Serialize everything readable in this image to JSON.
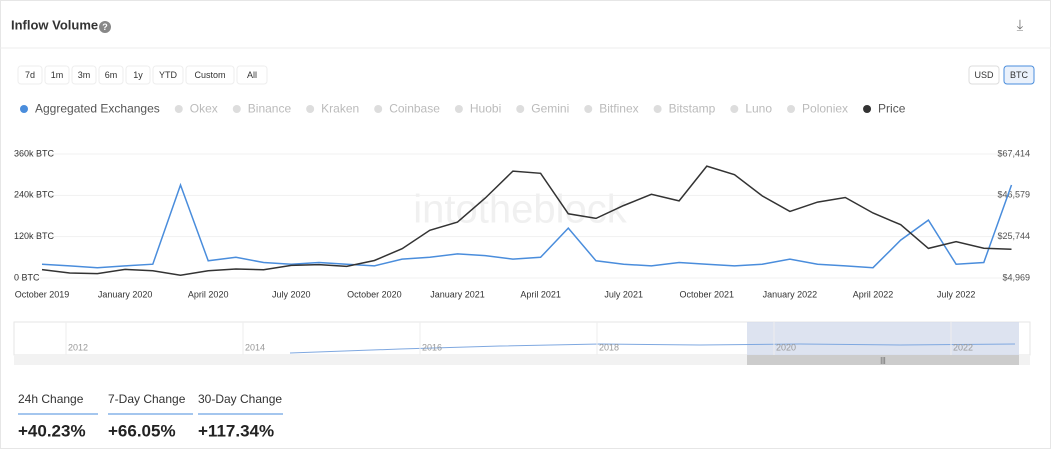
{
  "header": {
    "title": "Inflow Volume",
    "help": "?",
    "download": "⤓"
  },
  "range_buttons": [
    "7d",
    "1m",
    "3m",
    "6m",
    "1y",
    "YTD",
    "Custom",
    "All"
  ],
  "currency_buttons": [
    "USD",
    "BTC"
  ],
  "hidden_series": [
    "Okex",
    "Binance",
    "Kraken",
    "Coinbase",
    "Huobi",
    "Gemini",
    "Bitfinex",
    "Bitstamp",
    "Luno",
    "Poloniex"
  ],
  "watermark": "intotheblock",
  "navigator": {
    "labels": [
      "2012",
      "2014",
      "2016",
      "2018",
      "2020",
      "2022"
    ],
    "scroll": "|||"
  },
  "stats": [
    {
      "label": "24h Change",
      "value": "+40.23%"
    },
    {
      "label": "7-Day Change",
      "value": "+66.05%"
    },
    {
      "label": "30-Day Change",
      "value": "+117.34%"
    }
  ],
  "chart_data": {
    "type": "line",
    "categories": [
      "October 2019",
      null,
      null,
      "January 2020",
      null,
      null,
      "April 2020",
      null,
      null,
      "July 2020",
      null,
      null,
      "October 2020",
      null,
      null,
      "January 2021",
      null,
      null,
      "April 2021",
      null,
      null,
      "July 2021",
      null,
      null,
      "October 2021",
      null,
      null,
      "January 2022",
      null,
      null,
      "April 2022",
      null,
      null,
      "July 2022",
      null,
      null
    ],
    "series": [
      {
        "name": "Aggregated Exchanges",
        "color": "#4a8ddc",
        "values": [
          40000,
          35000,
          30000,
          35000,
          40000,
          270000,
          50000,
          60000,
          45000,
          40000,
          45000,
          40000,
          35000,
          55000,
          60000,
          70000,
          65000,
          55000,
          60000,
          145000,
          50000,
          40000,
          35000,
          45000,
          40000,
          35000,
          40000,
          55000,
          40000,
          35000,
          30000,
          110000,
          168000,
          40000,
          45000,
          270000
        ]
      },
      {
        "name": "Price",
        "color": "#333333",
        "axis": "y2",
        "values": [
          9200,
          7500,
          7200,
          9300,
          8600,
          6400,
          8600,
          9500,
          9100,
          11300,
          11700,
          10800,
          13800,
          19700,
          29000,
          33100,
          45200,
          58800,
          57700,
          37300,
          35000,
          41500,
          47100,
          43800,
          61300,
          57000,
          46300,
          38500,
          43200,
          45500,
          37700,
          31800,
          19900,
          23300,
          20000,
          19400
        ]
      }
    ],
    "ylim": [
      0,
      360000
    ],
    "yticks": [
      {
        "value": 0,
        "label": "0 BTC"
      },
      {
        "value": 120000,
        "label": "120k BTC"
      },
      {
        "value": 240000,
        "label": "240k BTC"
      },
      {
        "value": 360000,
        "label": "360k BTC"
      }
    ],
    "y2lim": [
      4969,
      67414
    ],
    "y2ticks": [
      {
        "value": 4969,
        "label": "$4,969"
      },
      {
        "value": 25744,
        "label": "$25,744"
      },
      {
        "value": 46579,
        "label": "$46,579"
      },
      {
        "value": 67414,
        "label": "$67,414"
      }
    ],
    "grid": true
  }
}
